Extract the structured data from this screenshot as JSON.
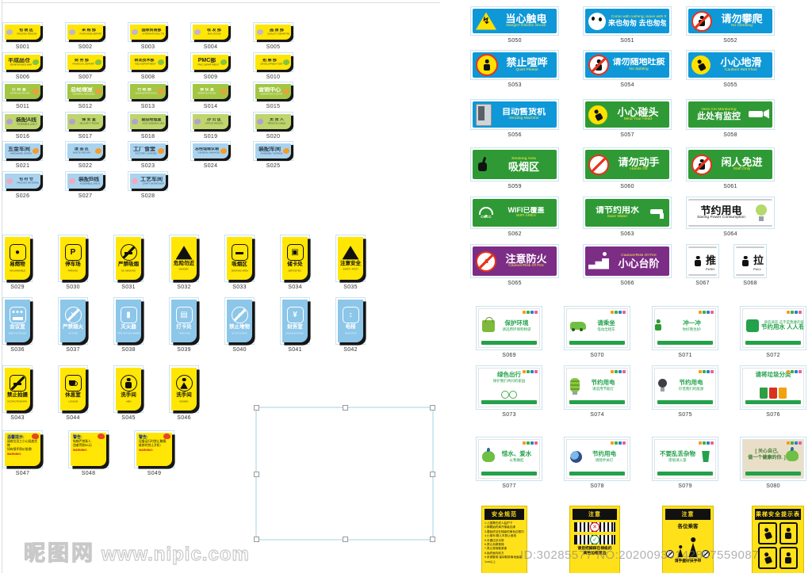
{
  "palette": {
    "yellow": "#ffe604",
    "door_green": "#a3c643",
    "door_lime": "#bfd56d",
    "door_blue": "#a9d3ee",
    "safety_blue": "#0e98d8",
    "safety_green": "#2f9a35",
    "purple": "#7c2d86",
    "red": "#e8321c",
    "eco_green": "#23a14b",
    "selection_border": "#c9e4f2"
  },
  "watermarks": {
    "logo_cn": "昵图网",
    "site_url": "www.nipic.com",
    "serial": "ID:30285577 NO:20200930142807559087"
  },
  "door_sign_rows": [
    {
      "theme": "yellow",
      "icon": "flower",
      "icon_side": "left",
      "items": [
        {
          "code": "S001",
          "zh": "包 装 区",
          "en": "PACKING REGION"
        },
        {
          "code": "S002",
          "zh": "采 购 部",
          "en": "PURCHASE DEPARTMENT"
        },
        {
          "code": "S003",
          "zh": "国际贸易部",
          "en": "INTERNATIONAL TRADE"
        },
        {
          "code": "S004",
          "zh": "收 发 部",
          "en": "MAIL ROOM"
        },
        {
          "code": "S005",
          "zh": "品 质 部",
          "en": "QUALITY DEPARTMENT"
        }
      ]
    },
    {
      "theme": "yellow",
      "icon": "frog",
      "icon_side": "right",
      "items": [
        {
          "code": "S006",
          "zh": "半成品仓",
          "en": "SEMIFINISHED WAREHOUSE"
        },
        {
          "code": "S007",
          "zh": "财 务 部",
          "en": "FINANCIAL DEPARTMENT"
        },
        {
          "code": "S008",
          "zh": "研发技术部",
          "en": "R&D DEPARTMENT"
        },
        {
          "code": "S009",
          "zh": "PMC部",
          "en": "PMC DEPARTMENT"
        },
        {
          "code": "S010",
          "zh": "拓 展 部",
          "en": "DEVELOPMENT DEPARTMENT"
        }
      ]
    },
    {
      "theme": "green",
      "icon": "tiger",
      "icon_side": "right",
      "items": [
        {
          "code": "S011",
          "zh": "打 样 室",
          "en": "SAMPLING ROOM"
        },
        {
          "code": "S012",
          "zh": "总经理室",
          "en": "GENERAL MANAGER OFFICE"
        },
        {
          "code": "S013",
          "zh": "行 政 部",
          "en": "ADMINISTRATION DEPARTMENT"
        },
        {
          "code": "S014",
          "zh": "会 议 室",
          "en": "MEETING ROOM"
        },
        {
          "code": "S015",
          "zh": "营销中心",
          "en": "MARKETING CENTER"
        }
      ]
    },
    {
      "theme": "lime",
      "icon": "rabbit",
      "icon_side": "left",
      "items": [
        {
          "code": "S016",
          "zh": "装配A线",
          "en": "ASSEMBLE LINE A"
        },
        {
          "code": "S017",
          "zh": "保 安 室",
          "en": "SECURITY ROOM"
        },
        {
          "code": "S018",
          "zh": "副总经理室",
          "en": "VICE GENERAL MANAGER OFFICE"
        },
        {
          "code": "S019",
          "zh": "办 公 区",
          "en": "OFFICE REGION"
        },
        {
          "code": "S020",
          "zh": "负 责 人",
          "en": "PERSON LIABLE"
        }
      ]
    },
    {
      "theme": "blue",
      "icon": "goldfish",
      "icon_side": "right",
      "items": [
        {
          "code": "S021",
          "zh": "五金车间",
          "en": "HARDWARE WORKSHOP"
        },
        {
          "code": "S022",
          "zh": "废 品 区",
          "en": "WASTE REGION"
        },
        {
          "code": "S023",
          "zh": "工厂食堂",
          "en": "FACTORY CANTEEN"
        },
        {
          "code": "S024",
          "zh": "总经理建议箱",
          "en": "GENERAL MANAGER SUGGESTION BOX"
        },
        {
          "code": "S025",
          "zh": "装配车间",
          "en": "ASSEMBLY WORKSHOP"
        }
      ]
    },
    {
      "theme": "blue",
      "icon": "pinkfish",
      "icon_side": "left",
      "items": [
        {
          "code": "S026",
          "zh": "包 材 仓",
          "en": "PACKING MATERIAL"
        },
        {
          "code": "S027",
          "zh": "装配B线",
          "en": "ASSEMBLE LINE B"
        },
        {
          "code": "S028",
          "zh": "工艺车间",
          "en": "CRAFT WORKSHOP"
        }
      ]
    }
  ],
  "vertical_rows": [
    {
      "theme": "yellow",
      "items": [
        {
          "code": "S029",
          "zh": "易燃物",
          "en": "INFLAMMABLE",
          "icon": "drum"
        },
        {
          "code": "S030",
          "zh": "停车场",
          "en": "PARKING",
          "icon": "parking"
        },
        {
          "code": "S031",
          "zh": "严禁吸烟",
          "en": "NO SMOKING",
          "icon": "nosmoke"
        },
        {
          "code": "S032",
          "zh": "危险勿近",
          "en": "DANGER",
          "icon": "danger"
        },
        {
          "code": "S033",
          "zh": "吸烟区",
          "en": "SMOKING AREA",
          "icon": "cig"
        },
        {
          "code": "S034",
          "zh": "储卡处",
          "en": "DEPOSITED",
          "icon": "cards"
        },
        {
          "code": "S035",
          "zh": "注意安全",
          "en": "SAFETY FIRST",
          "icon": "safety"
        }
      ]
    },
    {
      "theme": "blue",
      "items": [
        {
          "code": "S036",
          "zh": "会议室",
          "en": "MEETING ROOM",
          "icon": "meeting"
        },
        {
          "code": "S037",
          "zh": "严禁烟火",
          "en": "NO FIRE",
          "icon": "nofire"
        },
        {
          "code": "S038",
          "zh": "灭火器",
          "en": "FIRE EXTINGUISHER",
          "icon": "ext"
        },
        {
          "code": "S039",
          "zh": "打卡处",
          "en": "TIMECARD",
          "icon": "timecard"
        },
        {
          "code": "S040",
          "zh": "禁止堆物",
          "en": "NO STOCKING",
          "icon": "nostock"
        },
        {
          "code": "S041",
          "zh": "财务室",
          "en": "FINANCE ROOM",
          "icon": "finance"
        },
        {
          "code": "S042",
          "zh": "电梯",
          "en": "ELEVATOR",
          "icon": "elevator"
        }
      ]
    },
    {
      "theme": "yellow",
      "items": [
        {
          "code": "S043",
          "zh": "禁止拍摄",
          "en": "NO PHOTOGRAPH",
          "icon": "nocamera"
        },
        {
          "code": "S044",
          "zh": "休息室",
          "en": "LOUNGE",
          "icon": "coffee"
        },
        {
          "code": "S045",
          "zh": "洗手间",
          "en": "MEN",
          "icon": "man"
        },
        {
          "code": "S046",
          "zh": "洗手间",
          "en": "WOMEN",
          "icon": "woman"
        }
      ]
    }
  ],
  "notice_signs": [
    {
      "code": "S047",
      "title": "温馨提示:",
      "lines": [
        "请各位员工小心轻放货物",
        "如有损坏照价赔偿!"
      ],
      "warn": "WARNING:"
    },
    {
      "code": "S048",
      "title": "警告:",
      "lines": [
        "电梯严禁乘人,",
        "违者罚款50元!"
      ],
      "warn": "WARNING:"
    },
    {
      "code": "S049",
      "title": "警告:",
      "lines": [
        "设备运行时禁止触摸,",
        "维修时禁止开机!"
      ],
      "warn": "WARNING:"
    }
  ],
  "safety_signs": [
    {
      "code": "S050",
      "zh": "当心触电",
      "en": "Danger! Electric Shock",
      "bg": "blue",
      "icon": "bolttri",
      "row": 0,
      "col": 0
    },
    {
      "code": "S051",
      "zh": "来也匆匆 去也匆匆",
      "en": "Come with rushing, leave with flushing",
      "bg": "blue",
      "icon": "panda",
      "en_pos": "top",
      "row": 0,
      "col": 1
    },
    {
      "code": "S052",
      "zh": "请勿攀爬",
      "en": "No Climbing",
      "bg": "blue",
      "icon": "noclimb",
      "row": 0,
      "col": 2
    },
    {
      "code": "S053",
      "zh": "禁止喧哗",
      "en": "Quiet Please",
      "bg": "blue",
      "icon": "quiet",
      "row": 1,
      "col": 0
    },
    {
      "code": "S054",
      "zh": "请勿随地吐痰",
      "en": "No Spitting",
      "bg": "blue",
      "icon": "nospit",
      "row": 1,
      "col": 1
    },
    {
      "code": "S055",
      "zh": "小心地滑",
      "en": "Caution! Wet Floor",
      "bg": "blue",
      "icon": "slip",
      "row": 1,
      "col": 2
    },
    {
      "code": "S056",
      "zh": "自动售货机",
      "en": "Vending Machine",
      "bg": "blue",
      "icon": "vending",
      "row": 2,
      "col": 0
    },
    {
      "code": "S057",
      "zh": "小心碰头",
      "en": "Mind Your Head",
      "bg": "green",
      "icon": "bump",
      "row": 2,
      "col": 1
    },
    {
      "code": "S058",
      "zh": "此处有监控",
      "en": "Here Are Monitoring",
      "bg": "green",
      "icon": "camera",
      "en_pos": "top",
      "icon_side": "right",
      "row": 2,
      "col": 2
    },
    {
      "code": "S059",
      "zh": "吸烟区",
      "en": "Smoking Area",
      "bg": "green",
      "icon": "smokehand",
      "en_pos": "top",
      "row": 3,
      "col": 0
    },
    {
      "code": "S060",
      "zh": "请勿动手",
      "en": "Hands Off",
      "bg": "green",
      "icon": "nohand",
      "row": 3,
      "col": 1
    },
    {
      "code": "S061",
      "zh": "闲人免进",
      "en": "Staff Only",
      "bg": "green",
      "icon": "noperson",
      "row": 3,
      "col": 2
    },
    {
      "code": "S062",
      "zh": "WIFI已覆盖",
      "en": "WIFI AREA",
      "bg": "green",
      "icon": "wifi",
      "row": 4,
      "col": 0
    },
    {
      "code": "S063",
      "zh": "请节约用水",
      "en": "Save Water",
      "bg": "green",
      "icon": "faucet",
      "icon_side": "right",
      "row": 4,
      "col": 1
    },
    {
      "code": "S064",
      "zh": "节约用电",
      "en": "Saving Power Consumption",
      "bg": "white",
      "icon": "bulb",
      "icon_side": "right",
      "row": 4,
      "col": 2
    },
    {
      "code": "S065",
      "zh": "注意防火",
      "en": "Caution!Risk Of Fire",
      "bg": "purple",
      "icon": "nofire2",
      "row": 5,
      "col": 0
    },
    {
      "code": "S066",
      "zh": "小心台阶",
      "en": "Caution!Risk Of Fire",
      "bg": "purple",
      "icon": "stairs",
      "en_pos": "top",
      "row": 5,
      "col": 1
    },
    {
      "code": "S067",
      "zh": "推",
      "en": "PUSH",
      "bg": "white",
      "icon": "push",
      "small": true,
      "row": 5,
      "col": 2
    },
    {
      "code": "S068",
      "zh": "拉",
      "en": "PULL",
      "bg": "white",
      "icon": "pull",
      "small": true,
      "row": 5,
      "col": 3
    }
  ],
  "wifi_label": "CMCC",
  "eco_signs": [
    {
      "code": "S069",
      "t1": "保护环境",
      "t2": "请选用环保购物袋",
      "icon": "bag",
      "layout": "default"
    },
    {
      "code": "S070",
      "t1": "请乘坐",
      "t2": "电动出租车",
      "icon": "car",
      "layout": "default"
    },
    {
      "code": "S071",
      "t1": "冲一冲",
      "t2": "你好我也好!",
      "icon": "toilet",
      "layout": "default"
    },
    {
      "code": "S072",
      "t1": "节约用水 人人有责",
      "t2": "滴答滴答 这不是我要的旋律",
      "icon": "faucet2",
      "layout": "notetop"
    },
    {
      "code": "S073",
      "t1": "绿色出行",
      "t2": "保护我们共同的家园",
      "icon": "bike",
      "layout": "titletop"
    },
    {
      "code": "S074",
      "t1": "节约用电",
      "t2": "请选用节能灯",
      "icon": "cfl",
      "layout": "default"
    },
    {
      "code": "S075",
      "t1": "节约用电",
      "t2": "珍惜我们的能源",
      "icon": "bulb2",
      "layout": "default"
    },
    {
      "code": "S076",
      "t1": "请将垃圾分类",
      "t2": "",
      "icon": "bins",
      "layout": "titletop"
    },
    {
      "code": "S077",
      "t1": "惜水、爱水",
      "t2": "从我做起",
      "icon": "plant",
      "layout": "default"
    },
    {
      "code": "S078",
      "t1": "节约用电",
      "t2": "请随手关灯",
      "icon": "earth",
      "layout": "default"
    },
    {
      "code": "S079",
      "t1": "不要乱丢杂物",
      "t2": "废纸请入篓",
      "icon": "litter",
      "layout": "iconright"
    },
    {
      "code": "S080",
      "t1": "[ 关心自己,",
      "t2": "做一个健康的你. ]",
      "icon": "kraft",
      "layout": "kraft"
    }
  ],
  "eco_logo_colors": [
    "#f59b1e",
    "#3fae49",
    "#2d7fc1",
    "#e560a2"
  ],
  "escalator_signs": [
    {
      "type": "rules",
      "header": "安全规范",
      "list": [
        "1.儿童需在成人监护下",
        "2.脚要始终离开梯级边缘",
        "3.要始终站在梯级的黄色边框内",
        "4.小推车/婴儿车禁止使用",
        "5.手握住扶手带",
        "6.禁止赤脚乘梯",
        "7.禁止穿拖鞋乘梯",
        "8.始终面向前方",
        "9.系紧鞋带,保持鞋带离地面高1cm以上"
      ]
    },
    {
      "type": "steps",
      "header": "注意",
      "caption": [
        "请您把脚踩在梯级的",
        "黄色边框里边"
      ]
    },
    {
      "type": "passengers",
      "header": "注意",
      "subtitle": "各位乘客",
      "caption": [
        "请手握好扶手带"
      ]
    },
    {
      "type": "grid",
      "header": "乘梯安全提示表"
    }
  ]
}
